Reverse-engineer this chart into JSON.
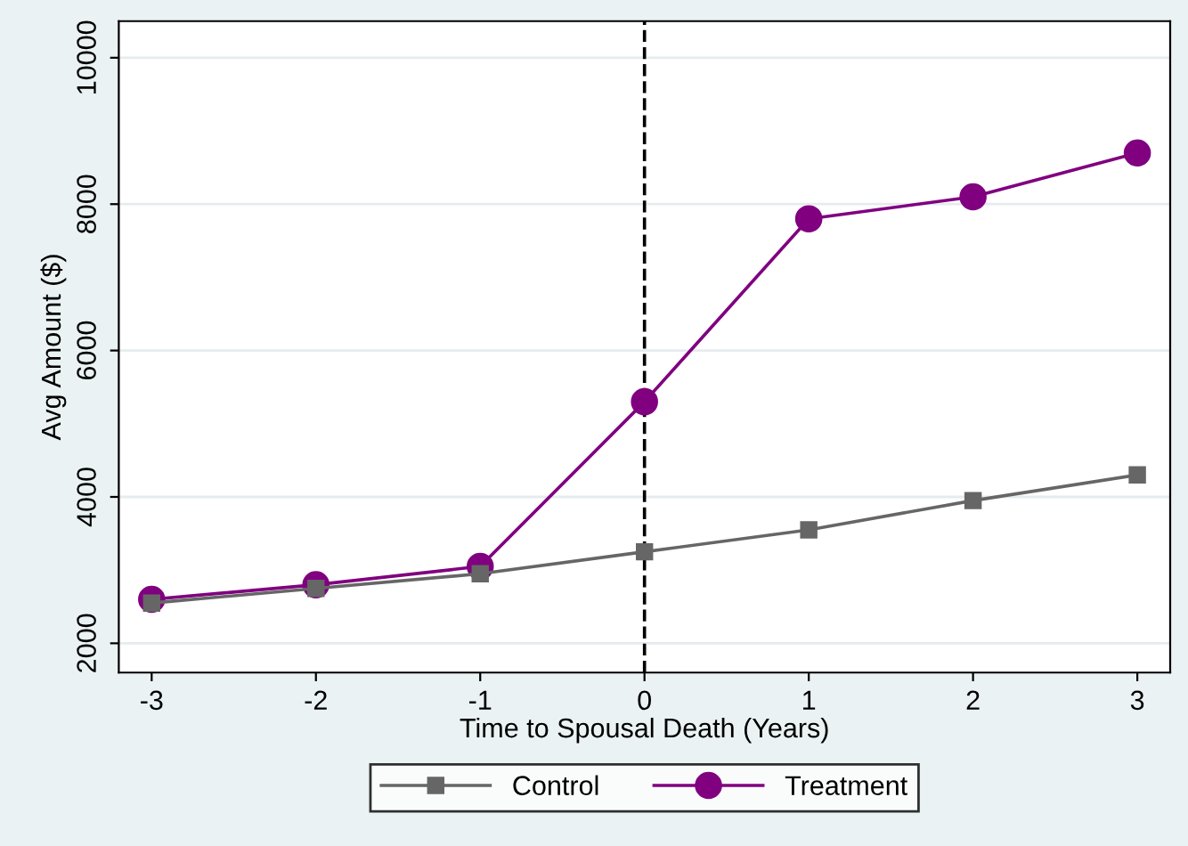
{
  "chart_data": {
    "type": "line",
    "xlabel": "Time to Spousal Death (Years)",
    "ylabel": "Avg Amount ($)",
    "x": [
      -3,
      -2,
      -1,
      0,
      1,
      2,
      3
    ],
    "series": [
      {
        "name": "Control",
        "color": "#666666",
        "marker": "square",
        "values": [
          2550,
          2750,
          2950,
          3250,
          3550,
          3950,
          4300
        ]
      },
      {
        "name": "Treatment",
        "color": "#800080",
        "marker": "circle",
        "values": [
          2600,
          2800,
          3050,
          5300,
          7800,
          8100,
          8700
        ]
      }
    ],
    "xlim": [
      -3.2,
      3.2
    ],
    "xticks": [
      -3,
      -2,
      -1,
      0,
      1,
      2,
      3
    ],
    "ylim": [
      1600,
      10500
    ],
    "yticks": [
      2000,
      4000,
      6000,
      8000,
      10000
    ],
    "grid": "y",
    "legend": "bottom",
    "line_style": "solid",
    "ref_lines": [
      {
        "axis": "x",
        "value": 0,
        "color": "#000000",
        "line_style": "dashed"
      }
    ]
  }
}
